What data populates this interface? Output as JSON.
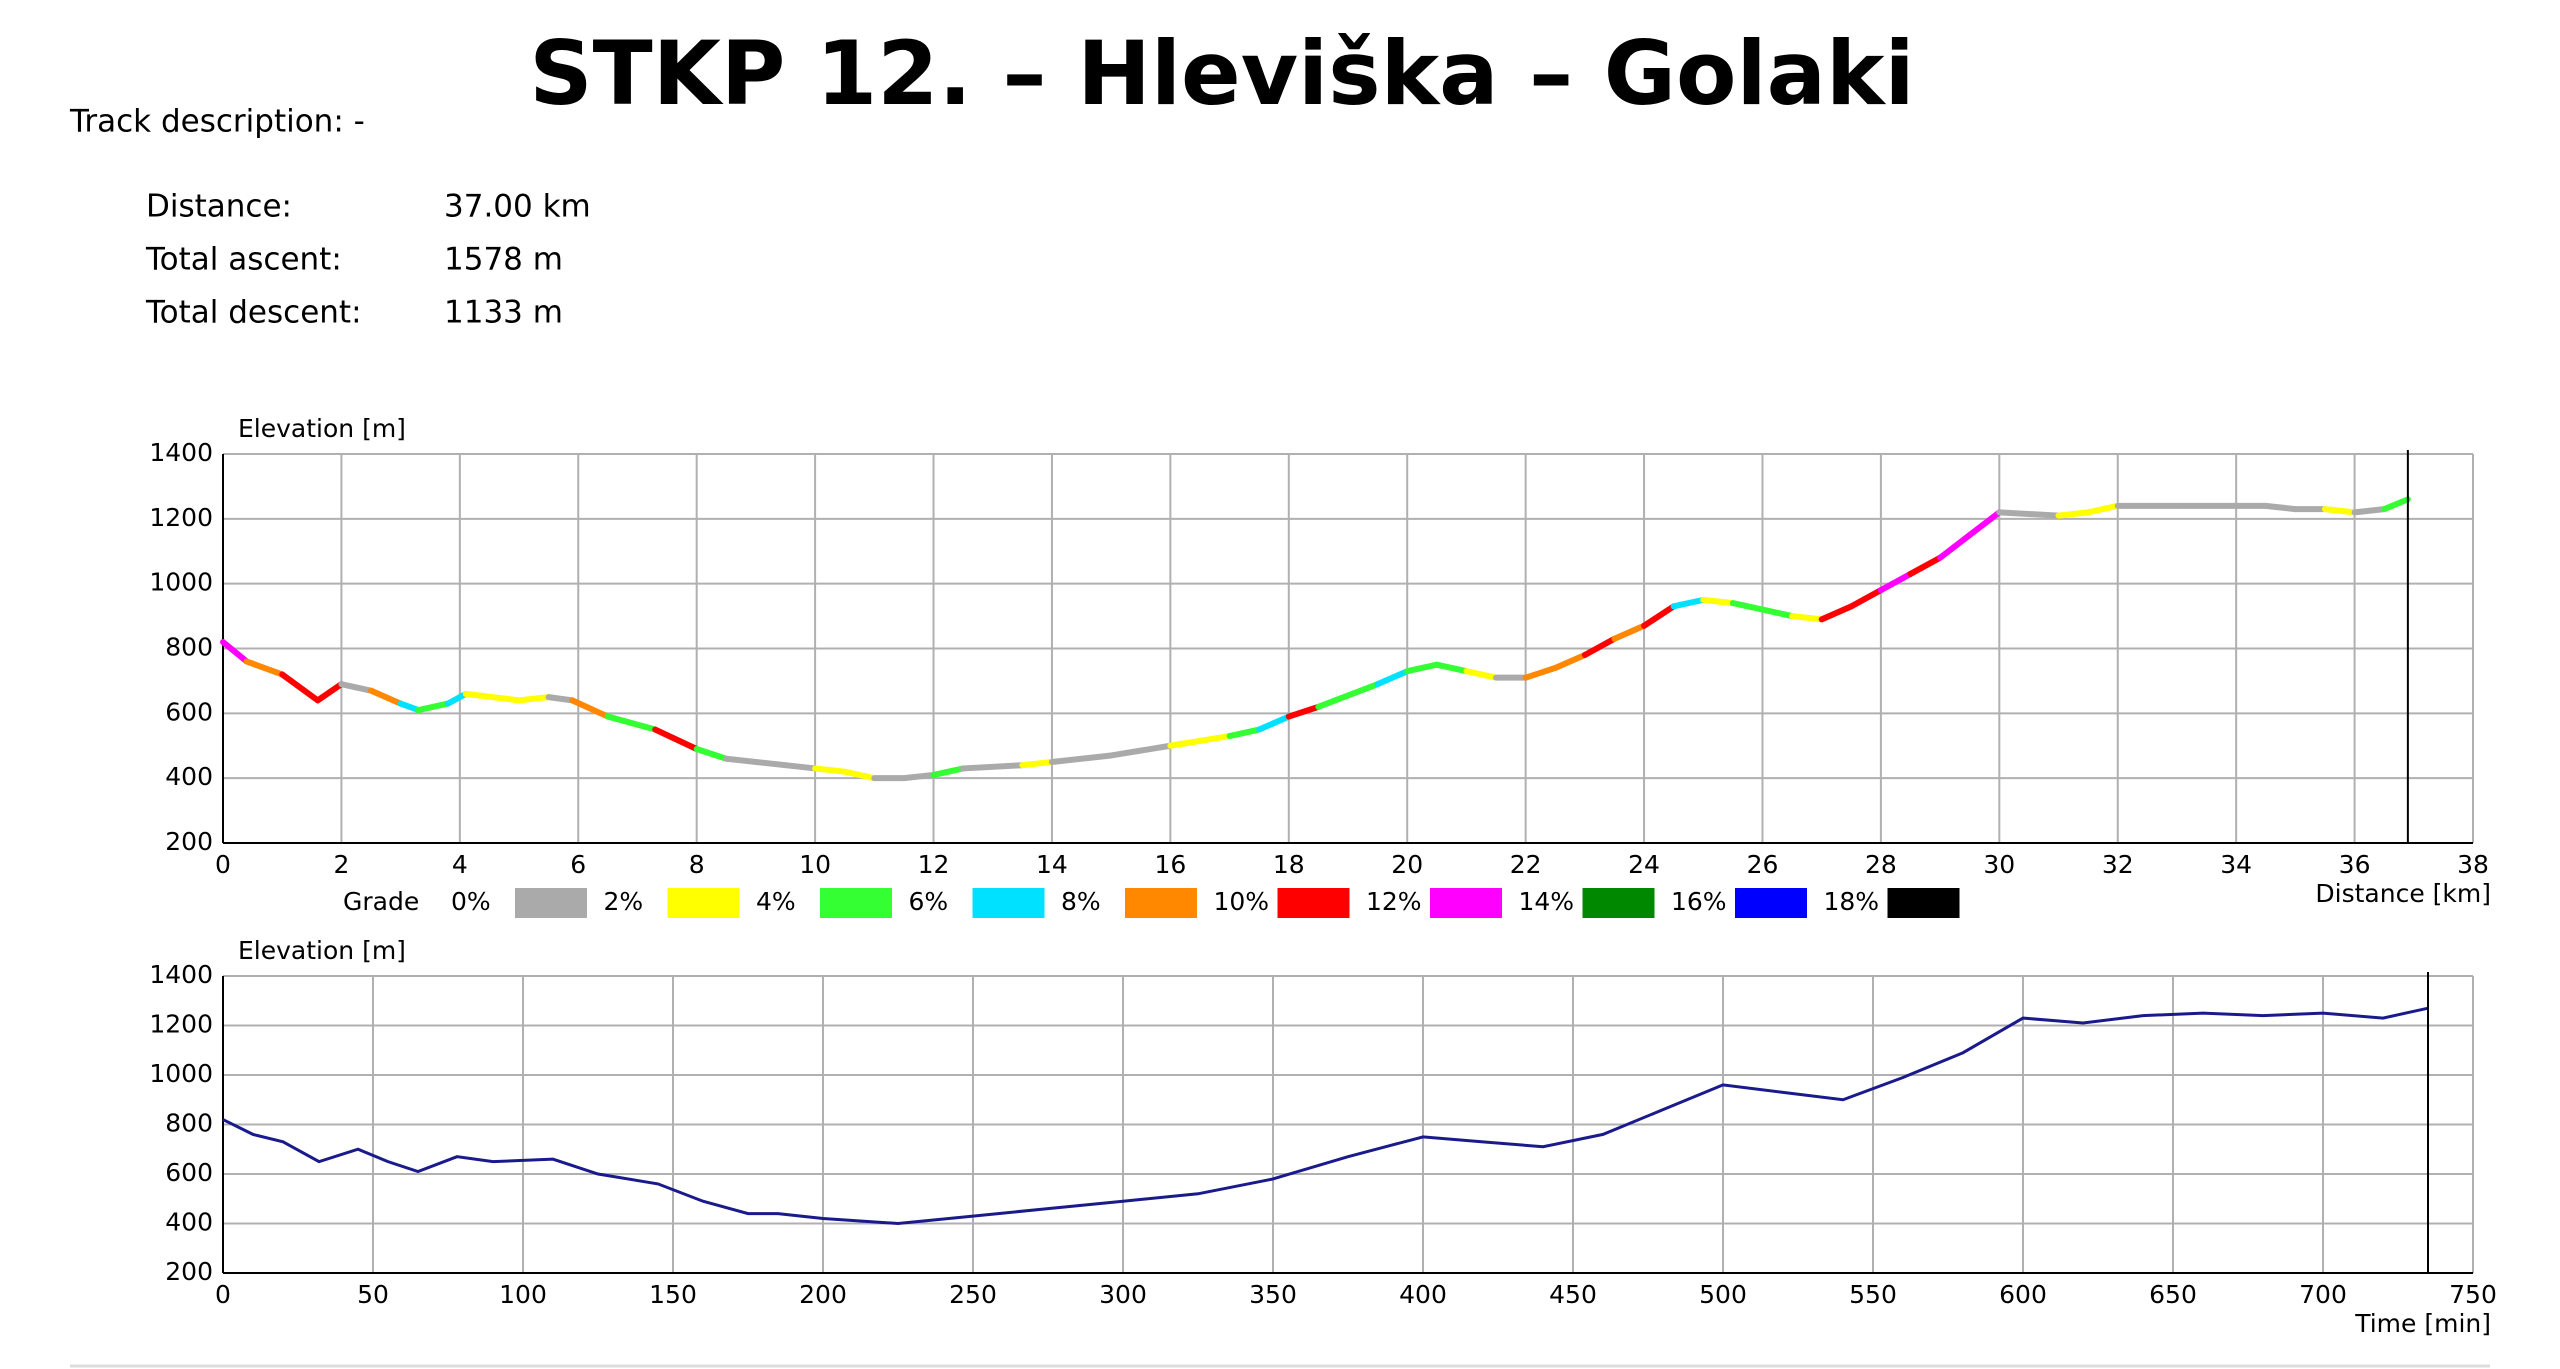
{
  "header": {
    "title": "STKP 12. – Hleviška – Golaki",
    "track_description": "Track description: -"
  },
  "stats": {
    "rows": [
      [
        "Distance:",
        "37.00 km"
      ],
      [
        "Total ascent:",
        "1578 m"
      ],
      [
        "Total descent:",
        "1133 m"
      ]
    ]
  },
  "chart_data": [
    {
      "type": "line",
      "y_label": "Elevation [m]",
      "x_label": "Distance [km]",
      "x": [
        0,
        0.4,
        1,
        1.6,
        2,
        2.5,
        3,
        3.3,
        3.8,
        4.1,
        5,
        5.5,
        5.9,
        6.5,
        7.3,
        8,
        8.5,
        9.5,
        10,
        10.5,
        11,
        11.5,
        12,
        12.5,
        13.5,
        14,
        15,
        16,
        17,
        17.5,
        18,
        18.5,
        19.5,
        20,
        20.5,
        21,
        21.5,
        22,
        22.5,
        23,
        23.5,
        24,
        24.5,
        25,
        25.5,
        26,
        26.5,
        27,
        27.5,
        28,
        28.5,
        29,
        29.5,
        30,
        31,
        31.5,
        32,
        33,
        34,
        34.5,
        35,
        35.5,
        36,
        36.5,
        36.9
      ],
      "series": [
        {
          "values": [
            820,
            760,
            720,
            640,
            690,
            670,
            630,
            610,
            630,
            660,
            640,
            650,
            640,
            590,
            550,
            490,
            460,
            440,
            430,
            420,
            400,
            400,
            410,
            430,
            440,
            450,
            470,
            500,
            530,
            550,
            590,
            620,
            690,
            730,
            750,
            730,
            710,
            710,
            740,
            780,
            830,
            870,
            930,
            950,
            940,
            920,
            900,
            890,
            930,
            980,
            1030,
            1080,
            1150,
            1220,
            1210,
            1220,
            1240,
            1240,
            1240,
            1240,
            1230,
            1230,
            1220,
            1230,
            1260
          ],
          "segment_colors": [
            "#ff00ff",
            "#ff8800",
            "#ff0000",
            "#ff0000",
            "#aaaaaa",
            "#ff8800",
            "#00e0ff",
            "#33ff33",
            "#00e0ff",
            "#ffff00",
            "#ffff00",
            "#aaaaaa",
            "#ff8800",
            "#33ff33",
            "#ff0000",
            "#33ff33",
            "#aaaaaa",
            "#aaaaaa",
            "#ffff00",
            "#ffff00",
            "#aaaaaa",
            "#aaaaaa",
            "#33ff33",
            "#aaaaaa",
            "#ffff00",
            "#aaaaaa",
            "#aaaaaa",
            "#ffff00",
            "#33ff33",
            "#00e0ff",
            "#ff0000",
            "#33ff33",
            "#00e0ff",
            "#33ff33",
            "#33ff33",
            "#ffff00",
            "#aaaaaa",
            "#ff8800",
            "#ff8800",
            "#ff0000",
            "#ff8800",
            "#ff0000",
            "#00e0ff",
            "#ffff00",
            "#33ff33",
            "#33ff33",
            "#ffff00",
            "#ff0000",
            "#ff0000",
            "#ff00ff",
            "#ff0000",
            "#ff00ff",
            "#ff00ff",
            "#aaaaaa",
            "#ffff00",
            "#ffff00",
            "#aaaaaa",
            "#aaaaaa",
            "#aaaaaa",
            "#aaaaaa",
            "#aaaaaa",
            "#ffff00",
            "#aaaaaa",
            "#33ff33"
          ]
        }
      ],
      "xlim": [
        0,
        38
      ],
      "xticks": [
        0,
        2,
        4,
        6,
        8,
        10,
        12,
        14,
        16,
        18,
        20,
        22,
        24,
        26,
        28,
        30,
        32,
        34,
        36,
        38
      ],
      "ylim": [
        200,
        1400
      ],
      "yticks": [
        200,
        400,
        600,
        800,
        1000,
        1200,
        1400
      ],
      "grid": true,
      "grade_legend": {
        "title": "Grade",
        "labels": [
          "0%",
          "2%",
          "4%",
          "6%",
          "8%",
          "10%",
          "12%",
          "14%",
          "16%",
          "18%"
        ],
        "colors": [
          "#aaaaaa",
          "#ffff00",
          "#33ff33",
          "#00e0ff",
          "#ff8800",
          "#ff0000",
          "#ff00ff",
          "#008800",
          "#0000ff",
          "#000000"
        ]
      }
    },
    {
      "type": "line",
      "y_label": "Elevation [m]",
      "x_label": "Time [min]",
      "x": [
        0,
        10,
        20,
        32,
        45,
        55,
        65,
        78,
        90,
        110,
        125,
        145,
        160,
        175,
        185,
        200,
        225,
        250,
        275,
        300,
        325,
        350,
        375,
        400,
        420,
        440,
        460,
        480,
        500,
        520,
        540,
        560,
        580,
        600,
        620,
        640,
        660,
        680,
        700,
        720,
        735
      ],
      "series": [
        {
          "color": "#1a1a8c",
          "values": [
            820,
            760,
            730,
            650,
            700,
            650,
            610,
            670,
            650,
            660,
            600,
            560,
            490,
            440,
            440,
            420,
            400,
            430,
            460,
            490,
            520,
            580,
            670,
            750,
            730,
            710,
            760,
            860,
            960,
            930,
            900,
            990,
            1090,
            1230,
            1210,
            1240,
            1250,
            1240,
            1250,
            1230,
            1270
          ]
        }
      ],
      "xlim": [
        0,
        750
      ],
      "xticks": [
        0,
        50,
        100,
        150,
        200,
        250,
        300,
        350,
        400,
        450,
        500,
        550,
        600,
        650,
        700,
        750
      ],
      "ylim": [
        200,
        1400
      ],
      "yticks": [
        200,
        400,
        600,
        800,
        1000,
        1200,
        1400
      ],
      "grid": true
    }
  ]
}
